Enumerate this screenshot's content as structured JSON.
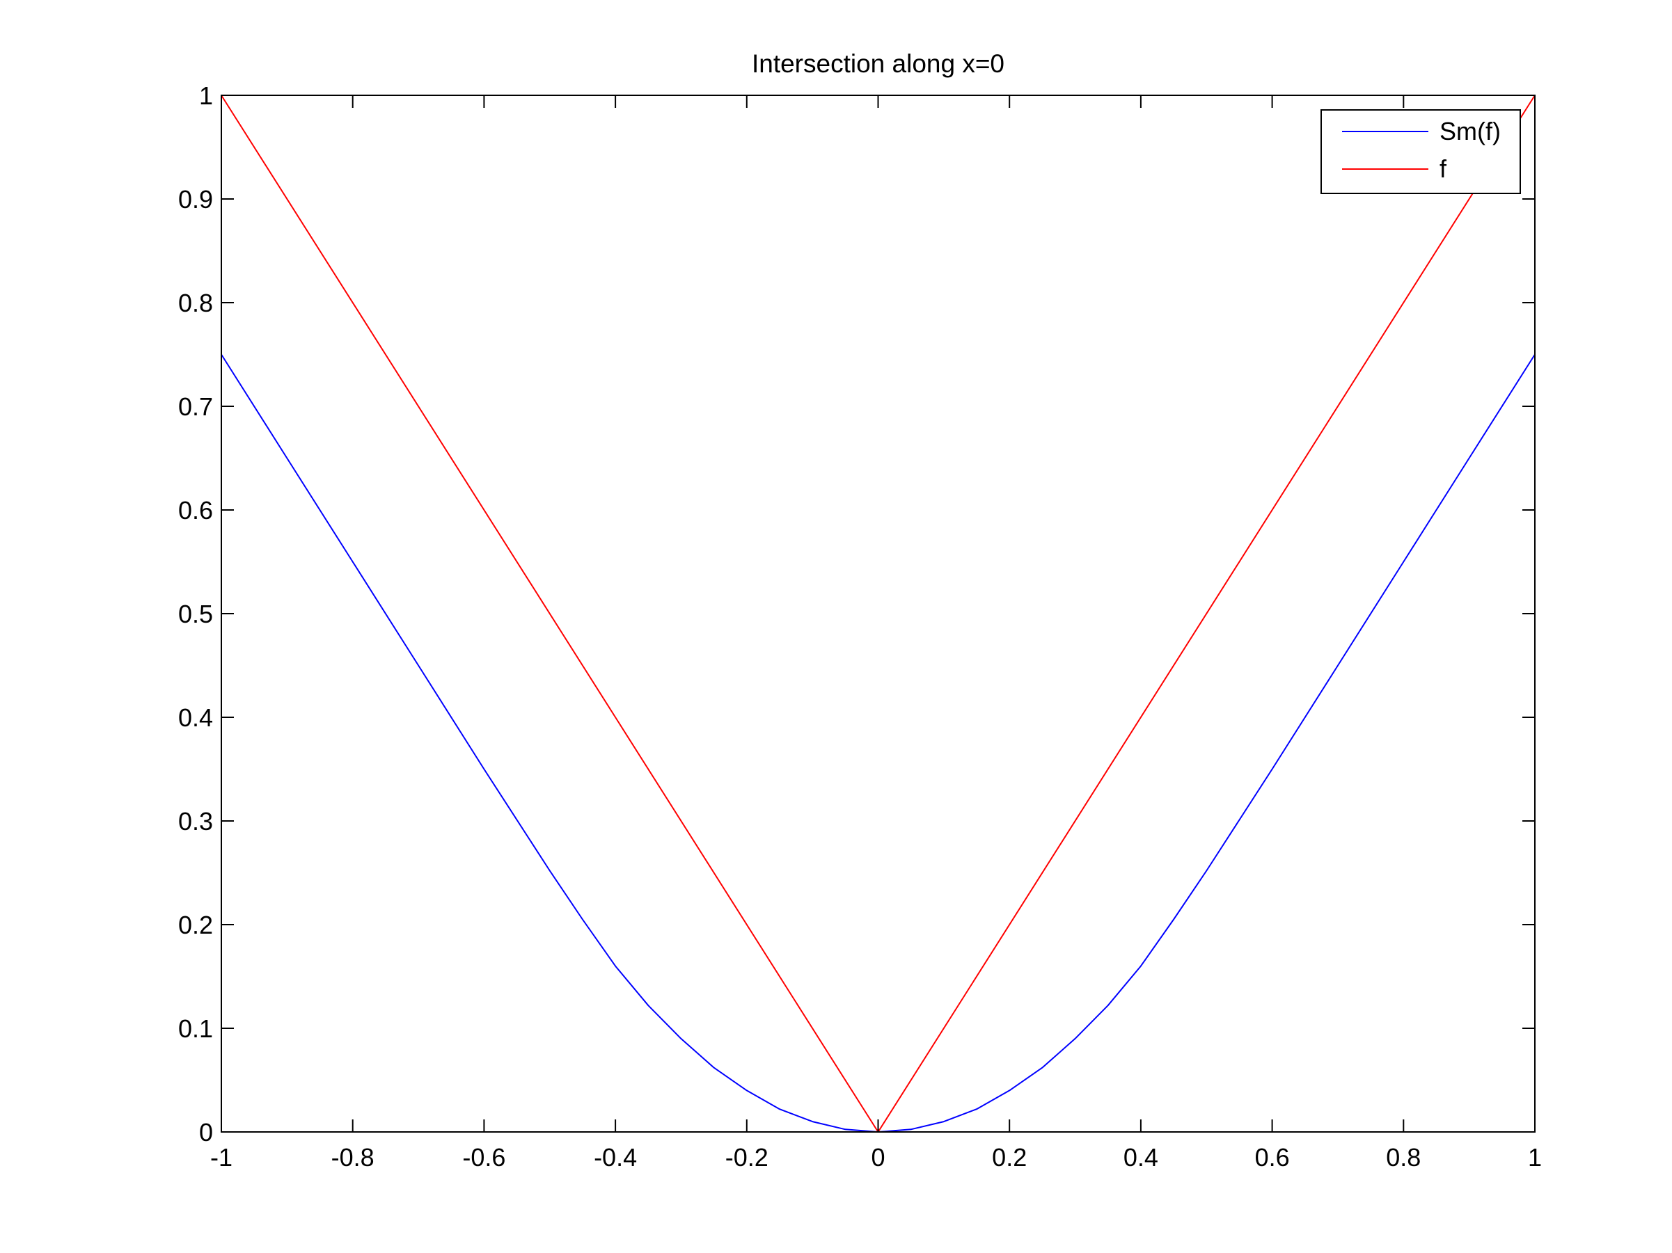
{
  "chart_data": {
    "type": "line",
    "title": "Intersection along x=0",
    "xlabel": "",
    "ylabel": "",
    "xlim": [
      -1,
      1
    ],
    "ylim": [
      0,
      1
    ],
    "xticks": [
      -1,
      -0.8,
      -0.6,
      -0.4,
      -0.2,
      0,
      0.2,
      0.4,
      0.6,
      0.8,
      1
    ],
    "xtick_labels": [
      "-1",
      "-0.8",
      "-0.6",
      "-0.4",
      "-0.2",
      "0",
      "0.2",
      "0.4",
      "0.6",
      "0.8",
      "1"
    ],
    "yticks": [
      0,
      0.1,
      0.2,
      0.3,
      0.4,
      0.5,
      0.6,
      0.7,
      0.8,
      0.9,
      1
    ],
    "ytick_labels": [
      "0",
      "0.1",
      "0.2",
      "0.3",
      "0.4",
      "0.5",
      "0.6",
      "0.7",
      "0.8",
      "0.9",
      "1"
    ],
    "grid": false,
    "legend_position": "top-right",
    "series": [
      {
        "name": "Sm(f)",
        "color": "#0000ff",
        "x": [
          -1,
          -0.9,
          -0.8,
          -0.7,
          -0.6,
          -0.5,
          -0.45,
          -0.4,
          -0.35,
          -0.3,
          -0.25,
          -0.2,
          -0.15,
          -0.1,
          -0.05,
          0,
          0.05,
          0.1,
          0.15,
          0.2,
          0.25,
          0.3,
          0.35,
          0.4,
          0.45,
          0.5,
          0.6,
          0.7,
          0.8,
          0.9,
          1
        ],
        "y": [
          0.75,
          0.65,
          0.55,
          0.45,
          0.35,
          0.252,
          0.205,
          0.16,
          0.122,
          0.09,
          0.062,
          0.04,
          0.022,
          0.01,
          0.0025,
          0,
          0.0025,
          0.01,
          0.022,
          0.04,
          0.062,
          0.09,
          0.122,
          0.16,
          0.205,
          0.252,
          0.35,
          0.45,
          0.55,
          0.65,
          0.75
        ]
      },
      {
        "name": "f",
        "color": "#ff0000",
        "x": [
          -1,
          0,
          1
        ],
        "y": [
          1,
          0,
          1
        ]
      }
    ]
  }
}
